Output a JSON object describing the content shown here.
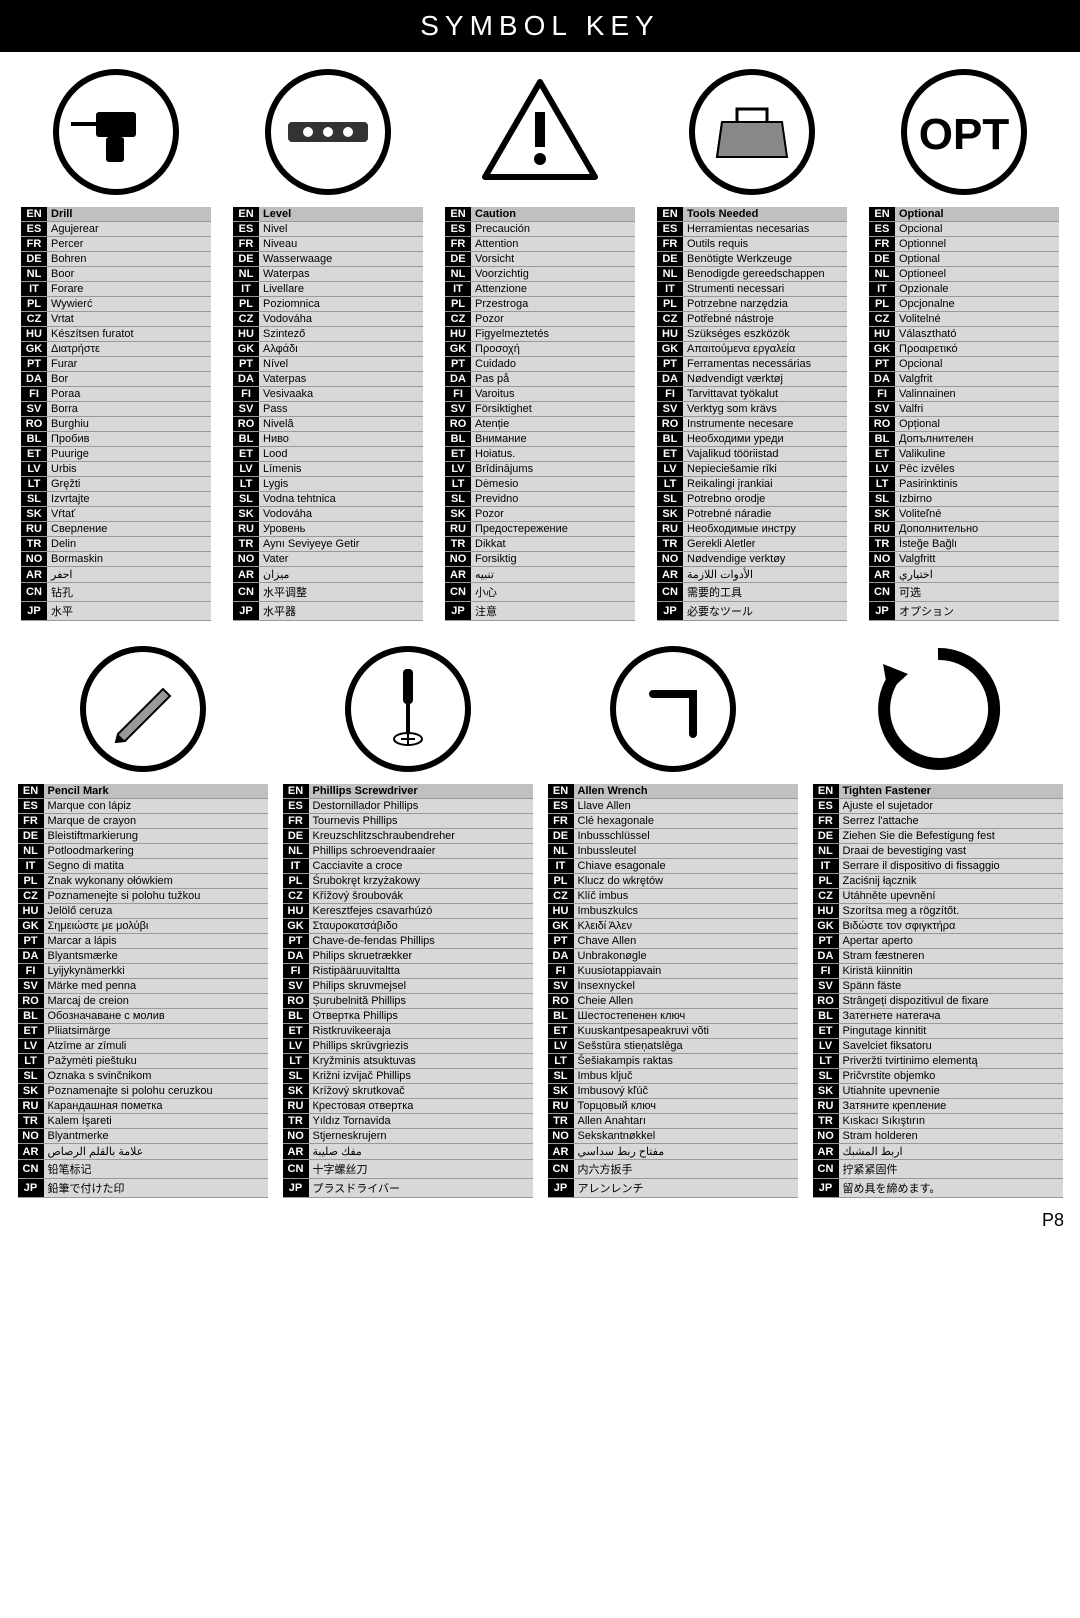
{
  "title": "SYMBOL KEY",
  "pageNumber": "P8",
  "langCodes": [
    "EN",
    "ES",
    "FR",
    "DE",
    "NL",
    "IT",
    "PL",
    "CZ",
    "HU",
    "GK",
    "PT",
    "DA",
    "FI",
    "SV",
    "RO",
    "BL",
    "ET",
    "LV",
    "LT",
    "SL",
    "SK",
    "RU",
    "TR",
    "NO",
    "AR",
    "CN",
    "JP"
  ],
  "row1": [
    {
      "icon": "drill",
      "labels": [
        "Drill",
        "Agujerear",
        "Percer",
        "Bohren",
        "Boor",
        "Forare",
        "Wywierć",
        "Vrtat",
        "Készítsen furatot",
        "Διατρήστε",
        "Furar",
        "Bor",
        "Poraa",
        "Borra",
        "Burghiu",
        "Пробив",
        "Puurige",
        "Urbis",
        "Gręžti",
        "Izvrtajte",
        "Vŕtať",
        "Сверление",
        "Delin",
        "Bormaskin",
        "احفر",
        "钻孔",
        "水平"
      ]
    },
    {
      "icon": "level",
      "labels": [
        "Level",
        "Nivel",
        "Niveau",
        "Wasserwaage",
        "Waterpas",
        "Livellare",
        "Poziomnica",
        "Vodováha",
        "Szintező",
        "Αλφάδι",
        "Nível",
        "Vaterpas",
        "Vesivaaka",
        "Pass",
        "Nivelă",
        "Ниво",
        "Lood",
        "Līmenis",
        "Lygis",
        "Vodna tehtnica",
        "Vodováha",
        "Уровень",
        "Aynı Seviyeye Getir",
        "Vater",
        "ميزان",
        "水平调整",
        "水平器"
      ]
    },
    {
      "icon": "caution",
      "labels": [
        "Caution",
        "Precaución",
        "Attention",
        "Vorsicht",
        "Voorzichtig",
        "Attenzione",
        "Przestroga",
        "Pozor",
        "Figyelmeztetés",
        "Προσοχή",
        "Cuidado",
        "Pas på",
        "Varoitus",
        "Försiktighet",
        "Atenție",
        "Внимание",
        "Hoiatus.",
        "Brīdinājums",
        "Dėmesio",
        "Previdno",
        "Pozor",
        "Предостережение",
        "Dikkat",
        "Forsiktig",
        "تنبيه",
        "小心",
        "注意"
      ]
    },
    {
      "icon": "toolbox",
      "labels": [
        "Tools Needed",
        "Herramientas necesarias",
        "Outils requis",
        "Benötigte Werkzeuge",
        "Benodigde gereedschappen",
        "Strumenti necessari",
        "Potrzebne narzędzia",
        "Potřebné nástroje",
        "Szükséges eszközök",
        "Απαιτούμενα εργαλεία",
        "Ferramentas necessárias",
        "Nødvendigt værktøj",
        "Tarvittavat työkalut",
        "Verktyg som krävs",
        "Instrumente necesare",
        "Необходими уреди",
        "Vajalikud tööriistad",
        "Nepieciešamie rīki",
        "Reikalingi įrankiai",
        "Potrebno orodje",
        "Potrebné náradie",
        "Необходимые инстру",
        "Gerekli Aletler",
        "Nødvendige verktøy",
        "الأدوات اللازمة",
        "需要的工具",
        "必要なツール"
      ]
    },
    {
      "icon": "opt",
      "labels": [
        "Optional",
        "Opcional",
        "Optionnel",
        "Optional",
        "Optioneel",
        "Opzionale",
        "Opcjonalne",
        "Volitelné",
        "Választható",
        "Προαιρετικό",
        "Opcional",
        "Valgfrit",
        "Valinnainen",
        "Valfri",
        "Opțional",
        "Допълнителен",
        "Valikuline",
        "Pēc izvēles",
        "Pasirinktinis",
        "Izbirno",
        "Voliteľné",
        "Дополнительно",
        "İsteğe Bağlı",
        "Valgfritt",
        "اختياري",
        "可选",
        "オプション"
      ]
    }
  ],
  "row2": [
    {
      "icon": "pencil",
      "labels": [
        "Pencil Mark",
        "Marque con lápiz",
        "Marque de crayon",
        "Bleistiftmarkierung",
        "Potloodmarkering",
        "Segno di matita",
        "Znak wykonany ołówkiem",
        "Poznamenejte si polohu tužkou",
        "Jelölő ceruza",
        "Σημειώστε με μολύβι",
        "Marcar a lápis",
        "Blyantsmærke",
        "Lyijykynämerkki",
        "Märke med penna",
        "Marcaj de creion",
        "Обозначаване с молив",
        "Pliiatsimärge",
        "Atzīme ar zīmuli",
        "Pažymėti pieštuku",
        "Oznaka s svinčnikom",
        "Poznamenajte si polohu ceruzkou",
        "Карандашная пометка",
        "Kalem İşareti",
        "Blyantmerke",
        "علامة بالقلم الرصاص",
        "铅笔标记",
        "鉛筆で付けた印"
      ]
    },
    {
      "icon": "phillips",
      "labels": [
        "Phillips Screwdriver",
        "Destornillador Phillips",
        "Tournevis Phillips",
        "Kreuzschlitzschraubendreher",
        "Phillips schroevendraaier",
        "Cacciavite a croce",
        "Śrubokręt krzyżakowy",
        "Křížový šroubovák",
        "Keresztfejes csavarhúzó",
        "Σταυροκατσάβιδο",
        "Chave-de-fendas Phillips",
        "Philips skruetrækker",
        "Ristipääruuvitaltta",
        "Philips skruvmejsel",
        "Șurubelnită Phillips",
        "Отвертка Phillips",
        "Ristkruvikeeraja",
        "Phillips skrūvgriezis",
        "Kryžminis atsuktuvas",
        "Križni izvijač Phillips",
        "Krížový skrutkovač",
        "Крестовая отвертка",
        "Yıldız Tornavida",
        "Stjerneskrujern",
        "مفك صليبة",
        "十字螺丝刀",
        "プラスドライバー"
      ]
    },
    {
      "icon": "allen",
      "labels": [
        "Allen Wrench",
        "Llave Allen",
        "Clé hexagonale",
        "Inbusschlüssel",
        "Inbussleutel",
        "Chiave esagonale",
        "Klucz do wkrętów",
        "Klíč imbus",
        "Imbuszkulcs",
        "Κλειδί Άλεν",
        "Chave Allen",
        "Unbrakonøgle",
        "Kuusiotappiavain",
        "Insexnyckel",
        "Cheie Allen",
        "Шестостепенен ключ",
        "Kuuskantpesapeakruvi võti",
        "Sešstūra stieņatslēga",
        "Šešiakampis raktas",
        "Imbus ključ",
        "Imbusový kľúč",
        "Торцовый ключ",
        "Allen Anahtarı",
        "Sekskantnøkkel",
        "مفتاح ربط سداسي",
        "内六方扳手",
        "アレンレンチ"
      ]
    },
    {
      "icon": "tighten",
      "labels": [
        "Tighten Fastener",
        "Ajuste el sujetador",
        "Serrez l'attache",
        "Ziehen Sie die Befestigung fest",
        "Draai de bevestiging vast",
        "Serrare il dispositivo di fissaggio",
        "Zaciśnij łącznik",
        "Utáhněte upevnění",
        "Szorítsa meg a rögzítőt.",
        "Βιδώστε τον σφιγκτήρα",
        "Apertar aperto",
        "Stram fæstneren",
        "Kiristä kiinnitin",
        "Spänn fäste",
        "Strângeți dispozitivul de fixare",
        "Затегнете натегача",
        "Pingutage kinnitit",
        "Savelciet fiksatoru",
        "Priveržti tvirtinimo elementą",
        "Pričvrstite objemko",
        "Utiahnite upevnenie",
        "Затяните крепление",
        "Kıskacı Sıkıştırın",
        "Stram holderen",
        "اربط المشبك",
        "拧紧紧固件",
        "留め具を締めます。"
      ]
    }
  ]
}
